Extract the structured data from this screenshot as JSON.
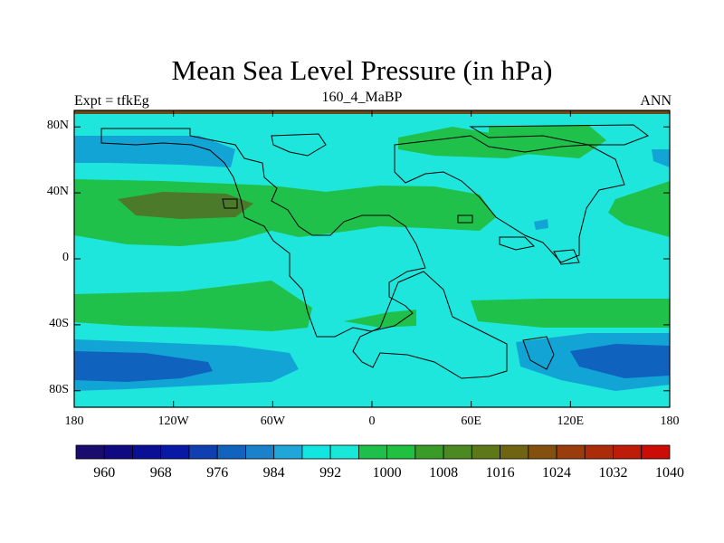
{
  "title": "Mean Sea Level Pressure (in hPa)",
  "subtitle_left": "Expt = tfkEg",
  "subtitle_center": "160_4_MaBP",
  "subtitle_right": "ANN",
  "lat_ticks": [
    "80N",
    "40N",
    "0",
    "40S",
    "80S"
  ],
  "lon_ticks": [
    "180",
    "120W",
    "60W",
    "0",
    "60E",
    "120E",
    "180"
  ],
  "colorbar": {
    "labels": [
      "960",
      "968",
      "976",
      "984",
      "992",
      "1000",
      "1008",
      "1016",
      "1024",
      "1032",
      "1040"
    ],
    "colors": [
      "#1a0c6e",
      "#0f0a82",
      "#0b0f96",
      "#0819a6",
      "#0f3fb0",
      "#1064c0",
      "#1a82cc",
      "#1ea7d8",
      "#12e6e0",
      "#19e8d8",
      "#1ebf4a",
      "#20c040",
      "#3a9c28",
      "#4a8a20",
      "#5c7818",
      "#6e6412",
      "#84500e",
      "#9a3c0c",
      "#ac2c0a",
      "#be1c08",
      "#cc0c06"
    ]
  },
  "map": {
    "ocean_color": "#1ee6dc",
    "high_color": "#20c14a",
    "higher_color": "#4a7a2a",
    "low_color": "#13a4d6",
    "lower_color": "#0f62be"
  }
}
